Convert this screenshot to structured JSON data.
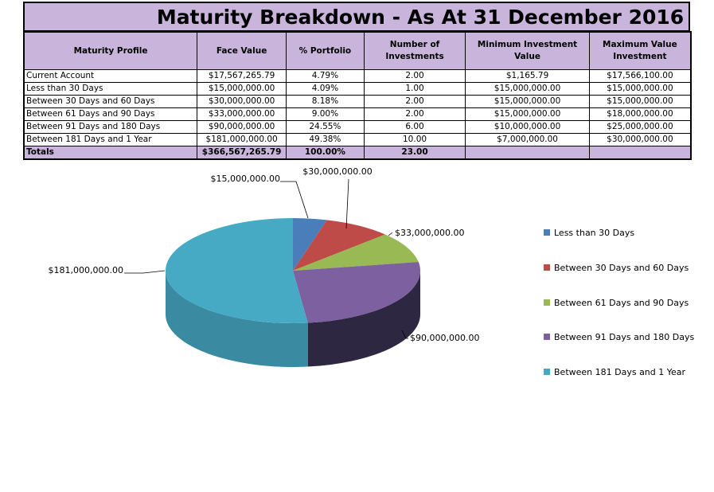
{
  "title": "Maturity Breakdown - As At 31 December 2016",
  "table": {
    "headers": [
      "Maturity Profile",
      "Face Value",
      "% Portfolio",
      "Number of Investments",
      "Minimum Investment Value",
      "Maximum Value Investment"
    ],
    "rows": [
      [
        "Current Account",
        "$17,567,265.79",
        "4.79%",
        "2.00",
        "$1,165.79",
        "$17,566,100.00"
      ],
      [
        "Less than 30 Days",
        "$15,000,000.00",
        "4.09%",
        "1.00",
        "$15,000,000.00",
        "$15,000,000.00"
      ],
      [
        "Between 30 Days and 60 Days",
        "$30,000,000.00",
        "8.18%",
        "2.00",
        "$15,000,000.00",
        "$15,000,000.00"
      ],
      [
        "Between 61 Days and 90 Days",
        "$33,000,000.00",
        "9.00%",
        "2.00",
        "$15,000,000.00",
        "$18,000,000.00"
      ],
      [
        "Between 91 Days and 180 Days",
        "$90,000,000.00",
        "24.55%",
        "6.00",
        "$10,000,000.00",
        "$25,000,000.00"
      ],
      [
        "Between 181 Days and 1 Year",
        "$181,000,000.00",
        "49.38%",
        "10.00",
        "$7,000,000.00",
        "$30,000,000.00"
      ]
    ],
    "totals": [
      "Totals",
      "$366,567,265.79",
      "100.00%",
      "23.00",
      "",
      ""
    ]
  },
  "chart_data": {
    "type": "pie",
    "style": "3d",
    "title": "",
    "categories": [
      "Less than 30 Days",
      "Between 30 Days and 60 Days",
      "Between 61 Days and 90 Days",
      "Between 91 Days and 180 Days",
      "Between 181 Days and 1 Year"
    ],
    "values": [
      15000000,
      30000000,
      33000000,
      90000000,
      181000000
    ],
    "data_labels": [
      "$15,000,000.00",
      "$30,000,000.00",
      "$33,000,000.00",
      "$90,000,000.00",
      "$181,000,000.00"
    ],
    "colors": [
      "#4a7ebb",
      "#be4b48",
      "#98b954",
      "#7d60a0",
      "#46aac5"
    ],
    "side_colors": [
      "#2d5a8e",
      "#8c2f2c",
      "#6f8b35",
      "#2e2742",
      "#3a8aa2"
    ],
    "legend_position": "right"
  }
}
